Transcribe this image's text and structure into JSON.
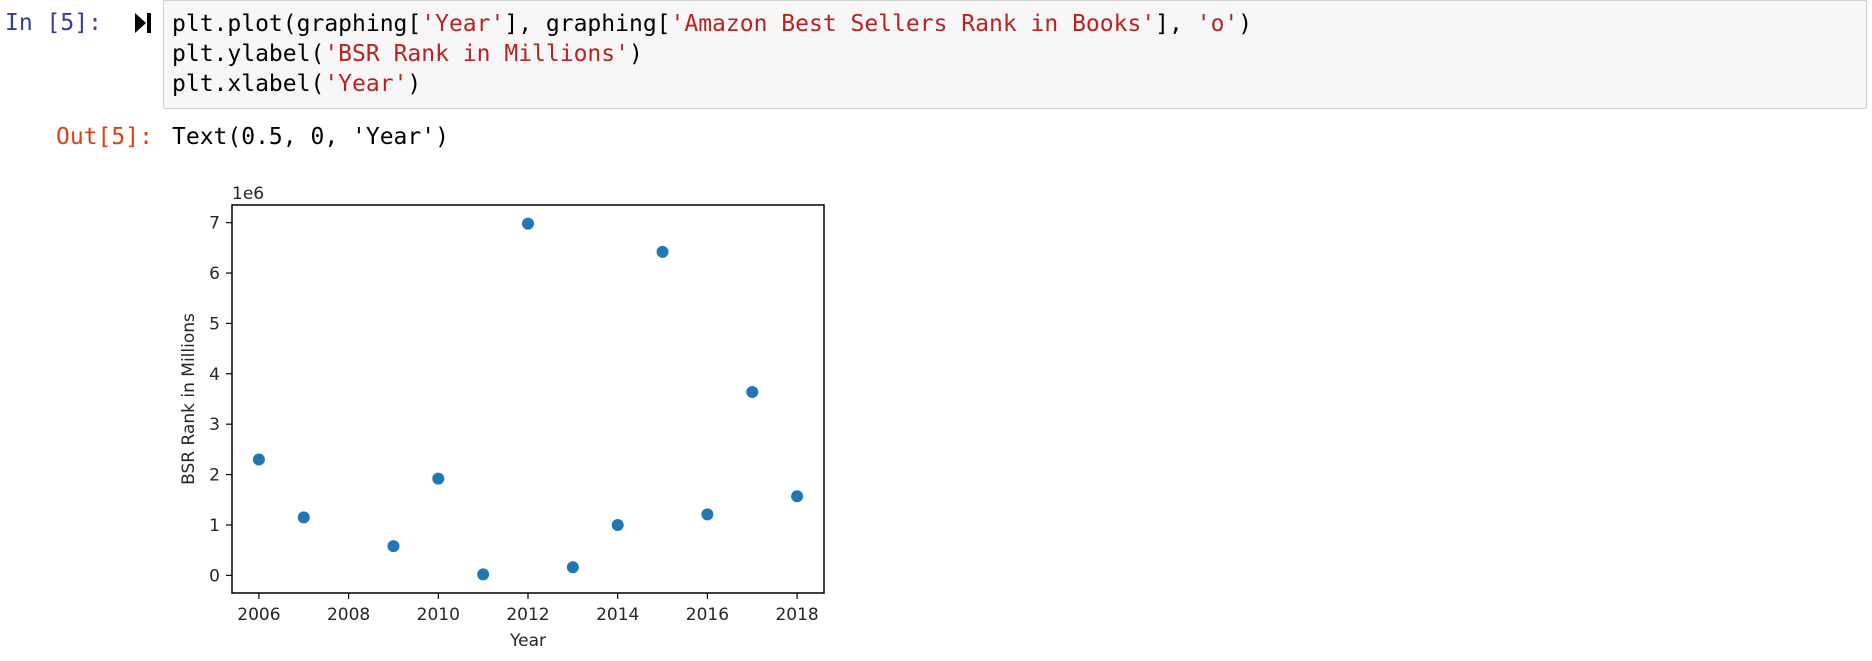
{
  "cell": {
    "in_prompt": "In [5]:",
    "out_prompt": "Out[5]:",
    "code_lines": [
      [
        {
          "t": "plt.plot(graphing[",
          "c": "plain"
        },
        {
          "t": "'Year'",
          "c": "str"
        },
        {
          "t": "], graphing[",
          "c": "plain"
        },
        {
          "t": "'Amazon Best Sellers Rank in Books'",
          "c": "str"
        },
        {
          "t": "], ",
          "c": "plain"
        },
        {
          "t": "'o'",
          "c": "str"
        },
        {
          "t": ")",
          "c": "plain"
        }
      ],
      [
        {
          "t": "plt.ylabel(",
          "c": "plain"
        },
        {
          "t": "'BSR Rank in Millions'",
          "c": "str"
        },
        {
          "t": ")",
          "c": "plain"
        }
      ],
      [
        {
          "t": "plt.xlabel(",
          "c": "plain"
        },
        {
          "t": "'Year'",
          "c": "str"
        },
        {
          "t": ")",
          "c": "plain"
        }
      ]
    ],
    "output_text": "Text(0.5, 0, 'Year')"
  },
  "colors": {
    "in_prompt": "#303f9f",
    "out_prompt": "#d84315",
    "string": "#ba2121",
    "cell_bg": "#f7f7f7",
    "marker": "#1f77b4"
  },
  "icons": {
    "run": "run-cell-icon"
  },
  "chart_data": {
    "type": "scatter",
    "x": [
      2006,
      2007,
      2009,
      2010,
      2011,
      2012,
      2013,
      2014,
      2015,
      2016,
      2017,
      2018
    ],
    "y": [
      2300000,
      1150000,
      580000,
      1920000,
      20000,
      6980000,
      160000,
      1000000,
      6420000,
      1210000,
      3640000,
      1570000
    ],
    "xlabel": "Year",
    "ylabel": "BSR Rank in Millions",
    "offset_label": "1e6",
    "x_ticks": [
      2006,
      2008,
      2010,
      2012,
      2014,
      2016,
      2018
    ],
    "y_ticks": [
      0,
      1,
      2,
      3,
      4,
      5,
      6,
      7
    ],
    "xlim": [
      2005.4,
      2018.6
    ],
    "ylim": [
      -0.35,
      7.35
    ],
    "grid": false
  }
}
